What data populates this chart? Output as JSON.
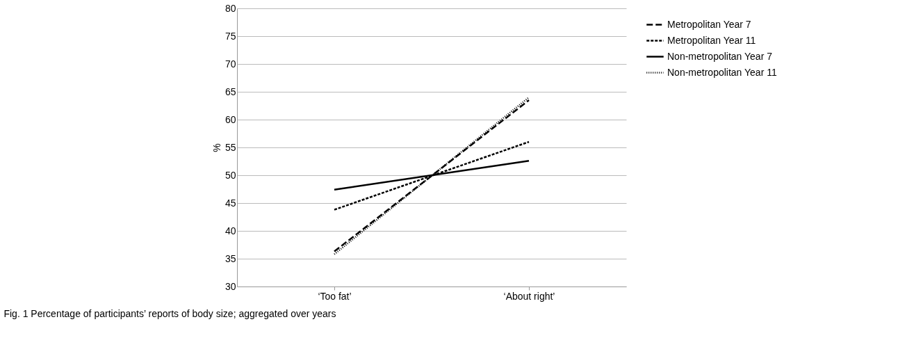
{
  "chart_data": {
    "type": "line",
    "categories": [
      "‘Too fat’",
      "‘About right’"
    ],
    "ylabel": "%",
    "ylim": [
      30,
      80
    ],
    "yticks": [
      30,
      35,
      40,
      45,
      50,
      55,
      60,
      65,
      70,
      75,
      80
    ],
    "grid": "y",
    "legend": "right",
    "marker": "none",
    "series": [
      {
        "name": "Metropolitan Year 7",
        "color": "#000000",
        "line_style": "longdash",
        "values": [
          36.3,
          63.5
        ]
      },
      {
        "name": "Metropolitan Year 11",
        "color": "#000000",
        "line_style": "dashed",
        "values": [
          43.8,
          56.0
        ]
      },
      {
        "name": "Non-metropolitan Year 7",
        "color": "#000000",
        "line_style": "solid",
        "values": [
          47.4,
          52.6
        ]
      },
      {
        "name": "Non-metropolitan Year 11",
        "color": "#000000",
        "line_style": "dotted",
        "values": [
          35.8,
          64.0
        ]
      }
    ],
    "annotations": [
      "Fig. 1 Percentage of participants’ reports of body size; aggregated over years"
    ]
  }
}
